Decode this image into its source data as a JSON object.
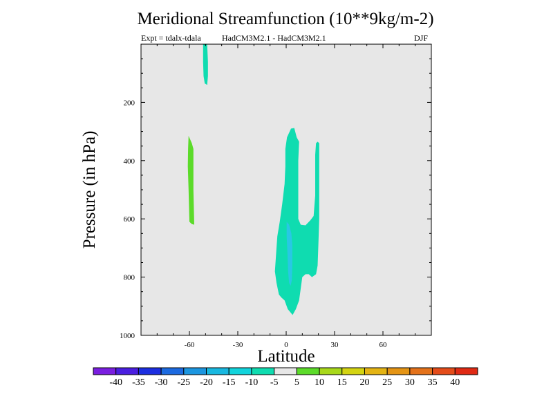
{
  "chart_data": {
    "type": "contour",
    "title": "Meridional Streamfunction (10**9kg/m-2)",
    "subtitle_left": "Expt = tdalx-tdala",
    "subtitle_center": "HadCM3M2.1 - HadCM3M2.1",
    "subtitle_right": "DJF",
    "xlabel": "Latitude",
    "ylabel": "Pressure (in hPa)",
    "xlim": [
      -90,
      90
    ],
    "ylim": [
      1000,
      0
    ],
    "x_ticks": [
      -60,
      -30,
      0,
      30,
      60
    ],
    "x_tick_labels": [
      "-60",
      "-30",
      "0",
      "30",
      "60"
    ],
    "y_ticks": [
      200,
      400,
      600,
      800,
      1000
    ],
    "y_tick_labels": [
      "200",
      "400",
      "600",
      "800",
      "1000"
    ],
    "background_color": "#e7e7e7",
    "regions": [
      {
        "name": "teal-top-column",
        "level": -7.5,
        "color": "#0fdcb0",
        "points": [
          [
            -51.5,
            0
          ],
          [
            -49,
            0
          ],
          [
            -48.5,
            60
          ],
          [
            -48.5,
            110
          ],
          [
            -49,
            140
          ],
          [
            -50.5,
            135
          ],
          [
            -51.2,
            110
          ],
          [
            -51.5,
            60
          ]
        ]
      },
      {
        "name": "green-left-strip",
        "level": 7.5,
        "color": "#5cdb2a",
        "points": [
          [
            -60.5,
            315
          ],
          [
            -58.5,
            340
          ],
          [
            -57.5,
            360
          ],
          [
            -57.5,
            500
          ],
          [
            -57,
            620
          ],
          [
            -58.5,
            618
          ],
          [
            -60,
            610
          ],
          [
            -60.5,
            500
          ],
          [
            -61,
            420
          ],
          [
            -60.8,
            360
          ]
        ]
      },
      {
        "name": "teal-main-plume",
        "level": -7.5,
        "color": "#0fdcb0",
        "points": [
          [
            -7,
            780
          ],
          [
            -6,
            700
          ],
          [
            -5.5,
            660
          ],
          [
            -4,
            610
          ],
          [
            -2.5,
            550
          ],
          [
            -1,
            480
          ],
          [
            -0.5,
            420
          ],
          [
            -0.5,
            360
          ],
          [
            0.5,
            320
          ],
          [
            3,
            290
          ],
          [
            5,
            288
          ],
          [
            6.5,
            320
          ],
          [
            8,
            335
          ],
          [
            7.5,
            400
          ],
          [
            7.5,
            600
          ],
          [
            9,
            620
          ],
          [
            12,
            622
          ],
          [
            15,
            605
          ],
          [
            17,
            590
          ],
          [
            18,
            520
          ],
          [
            18,
            440
          ],
          [
            18,
            380
          ],
          [
            18.5,
            340
          ],
          [
            19.5,
            335
          ],
          [
            20.5,
            340
          ],
          [
            20.5,
            600
          ],
          [
            20,
            680
          ],
          [
            19.5,
            760
          ],
          [
            18.5,
            790
          ],
          [
            16,
            800
          ],
          [
            14,
            790
          ],
          [
            12,
            790
          ],
          [
            10,
            800
          ],
          [
            9,
            840
          ],
          [
            8,
            880
          ],
          [
            6,
            910
          ],
          [
            4,
            930
          ],
          [
            1,
            910
          ],
          [
            -1,
            880
          ],
          [
            -3,
            870
          ],
          [
            -4.5,
            860
          ],
          [
            -6,
            820
          ]
        ]
      },
      {
        "name": "cyan-core",
        "level": -12.5,
        "color": "#28c8e4",
        "points": [
          [
            0.3,
            610
          ],
          [
            1.8,
            620
          ],
          [
            3.2,
            650
          ],
          [
            3.8,
            690
          ],
          [
            3.8,
            760
          ],
          [
            3.5,
            810
          ],
          [
            2.8,
            830
          ],
          [
            1.8,
            820
          ],
          [
            1.2,
            780
          ],
          [
            0.8,
            720
          ],
          [
            0.3,
            660
          ]
        ]
      }
    ],
    "colorbar": {
      "labels": [
        "-40",
        "-35",
        "-30",
        "-25",
        "-20",
        "-15",
        "-10",
        "-5",
        "5",
        "10",
        "15",
        "20",
        "25",
        "30",
        "35",
        "40"
      ],
      "colors": [
        "#7a1ee0",
        "#4a1ee0",
        "#1c2ee0",
        "#1c6ae0",
        "#1c96e0",
        "#18b8e0",
        "#12d4dc",
        "#0fdcb0",
        "#e7e7e7",
        "#5cdb2a",
        "#a8d81a",
        "#d4d412",
        "#e4b414",
        "#e49414",
        "#e4721a",
        "#e44c1a",
        "#e02a14"
      ]
    }
  }
}
